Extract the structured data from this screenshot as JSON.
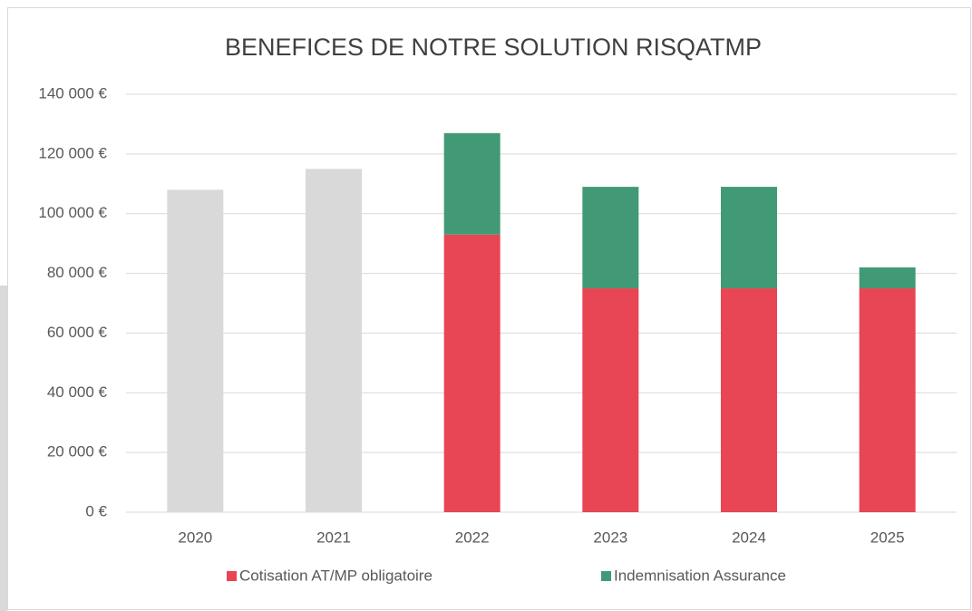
{
  "chart_data": {
    "type": "bar",
    "stacked": true,
    "title": "BENEFICES DE NOTRE SOLUTION RISQATMP",
    "categories": [
      "2020",
      "2021",
      "2022",
      "2023",
      "2024",
      "2025"
    ],
    "series": [
      {
        "color": "#d9d9d9",
        "values": [
          108000,
          115000,
          null,
          null,
          null,
          null
        ]
      },
      {
        "name": "Cotisation AT/MP obligatoire",
        "color": "#e84555",
        "values": [
          null,
          null,
          93000,
          75000,
          75000,
          75000
        ]
      },
      {
        "name": "Indemnisation Assurance",
        "color": "#419a75",
        "values": [
          null,
          null,
          34000,
          34000,
          34000,
          7000
        ]
      }
    ],
    "ylim": [
      0,
      140000
    ],
    "yticks": [
      {
        "value": 0,
        "label": "0 €"
      },
      {
        "value": 20000,
        "label": "20 000 €"
      },
      {
        "value": 40000,
        "label": "40 000 €"
      },
      {
        "value": 60000,
        "label": "60 000 €"
      },
      {
        "value": 80000,
        "label": "80 000 €"
      },
      {
        "value": 100000,
        "label": "100 000 €"
      },
      {
        "value": 120000,
        "label": "120 000 €"
      },
      {
        "value": 140000,
        "label": "140 000 €"
      }
    ],
    "grid": true,
    "legend": "bottom"
  }
}
